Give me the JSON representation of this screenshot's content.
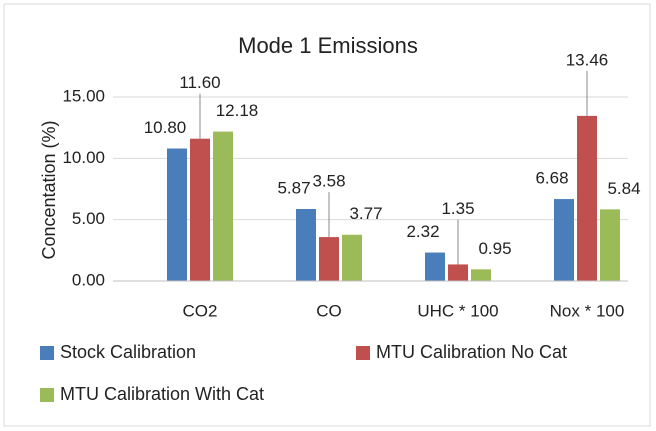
{
  "chart_data": {
    "type": "bar",
    "title": "Mode 1 Emissions",
    "y_label": "Concentation (%)",
    "categories": [
      "CO2",
      "CO",
      "UHC * 100",
      "Nox * 100"
    ],
    "series": [
      {
        "name": "Stock Calibration",
        "color": "#4a7ebb",
        "values": [
          10.8,
          5.87,
          2.32,
          6.68
        ],
        "value_labels": [
          "10.80",
          "5.87",
          "2.32",
          "6.68"
        ]
      },
      {
        "name": "MTU Calibration No Cat",
        "color": "#c0504d",
        "values": [
          11.6,
          3.58,
          1.35,
          13.46
        ],
        "value_labels": [
          "11.60",
          "3.58",
          "1.35",
          "13.46"
        ]
      },
      {
        "name": "MTU Calibration With Cat",
        "color": "#9bbb59",
        "values": [
          12.18,
          3.77,
          0.95,
          5.84
        ],
        "value_labels": [
          "12.18",
          "3.77",
          "0.95",
          "5.84"
        ]
      }
    ],
    "ylim": [
      0,
      15
    ],
    "yticks": [
      {
        "value": 0,
        "label": "0.00"
      },
      {
        "value": 5,
        "label": "5.00"
      },
      {
        "value": 10,
        "label": "10.00"
      },
      {
        "value": 15,
        "label": "15.00"
      }
    ],
    "grid": true
  }
}
